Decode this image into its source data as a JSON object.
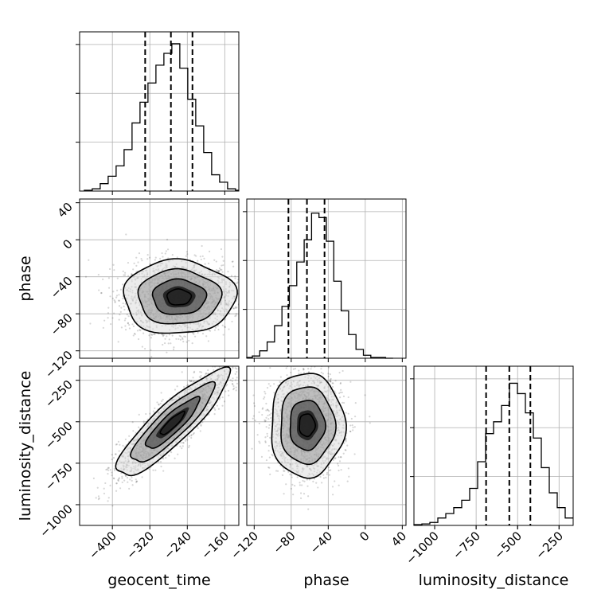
{
  "chart_data": {
    "type": "corner",
    "parameters": [
      "geocent_time",
      "phase",
      "luminosity_distance"
    ],
    "axis_labels": {
      "x": [
        "geocent_time",
        "phase",
        "luminosity_distance"
      ],
      "y": [
        "phase",
        "luminosity_distance"
      ]
    },
    "ranges": {
      "geocent_time": [
        -470,
        -130
      ],
      "phase": [
        -128,
        44
      ],
      "luminosity_distance": [
        -1125,
        -165
      ]
    },
    "ticks": {
      "geocent_time": [
        -400,
        -320,
        -240,
        -160
      ],
      "phase": [
        -120,
        -80,
        -40,
        0,
        40
      ],
      "luminosity_distance": [
        -1000,
        -750,
        -500,
        -250
      ]
    },
    "tick_labels": {
      "geocent_time": [
        "−400",
        "−320",
        "−240",
        "−160"
      ],
      "phase": [
        "−120",
        "−80",
        "−40",
        "0",
        "40"
      ],
      "luminosity_distance": [
        "−1000",
        "−750",
        "−500",
        "−250"
      ]
    },
    "grid": true,
    "quantiles": [
      0.16,
      0.5,
      0.84
    ],
    "histograms": {
      "geocent_time": {
        "bins": [
          -460,
          -443,
          -426,
          -409,
          -392,
          -375,
          -358,
          -341,
          -324,
          -307,
          -290,
          -273,
          -256,
          -239,
          -222,
          -205,
          -188,
          -171,
          -154,
          -137,
          -120
        ],
        "counts": [
          0.005,
          0.015,
          0.05,
          0.1,
          0.17,
          0.28,
          0.46,
          0.6,
          0.73,
          0.85,
          0.93,
          0.995,
          0.83,
          0.62,
          0.44,
          0.26,
          0.11,
          0.06,
          0.015,
          0.005
        ],
        "quantile_values": [
          -330,
          -275,
          -229
        ]
      },
      "phase": {
        "bins": [
          -130,
          -122,
          -114,
          -106,
          -98,
          -90,
          -82,
          -74,
          -66,
          -58,
          -50,
          -42,
          -34,
          -26,
          -18,
          -10,
          -2,
          6,
          14,
          22,
          30
        ],
        "counts": [
          0.005,
          0.015,
          0.05,
          0.11,
          0.22,
          0.35,
          0.49,
          0.65,
          0.8,
          0.98,
          0.95,
          0.79,
          0.52,
          0.32,
          0.16,
          0.06,
          0.02,
          0.005,
          0.005,
          0.0
        ],
        "quantile_values": [
          -83,
          -63,
          -44
        ]
      },
      "luminosity_distance": {
        "bins": [
          -1125,
          -1077,
          -1029,
          -981,
          -933,
          -885,
          -837,
          -789,
          -741,
          -693,
          -645,
          -597,
          -549,
          -501,
          -453,
          -405,
          -357,
          -309,
          -261,
          -213,
          -165
        ],
        "counts": [
          0.005,
          0.01,
          0.02,
          0.05,
          0.08,
          0.12,
          0.17,
          0.25,
          0.43,
          0.62,
          0.7,
          0.81,
          0.96,
          0.89,
          0.76,
          0.59,
          0.39,
          0.22,
          0.12,
          0.05
        ],
        "quantile_values": [
          -690,
          -550,
          -423
        ]
      }
    },
    "joint": {
      "phase_vs_geocent_time": {
        "center": [
          -258,
          -62
        ],
        "sigma": [
          57,
          19
        ],
        "rho": 0.0
      },
      "luminosity_distance_vs_geocent_time": {
        "center": [
          -272,
          -510
        ],
        "sigma": [
          57,
          153
        ],
        "rho": 0.88
      },
      "luminosity_distance_vs_phase": {
        "center": [
          -63,
          -520
        ],
        "sigma": [
          19,
          150
        ],
        "rho": 0.0
      }
    }
  }
}
